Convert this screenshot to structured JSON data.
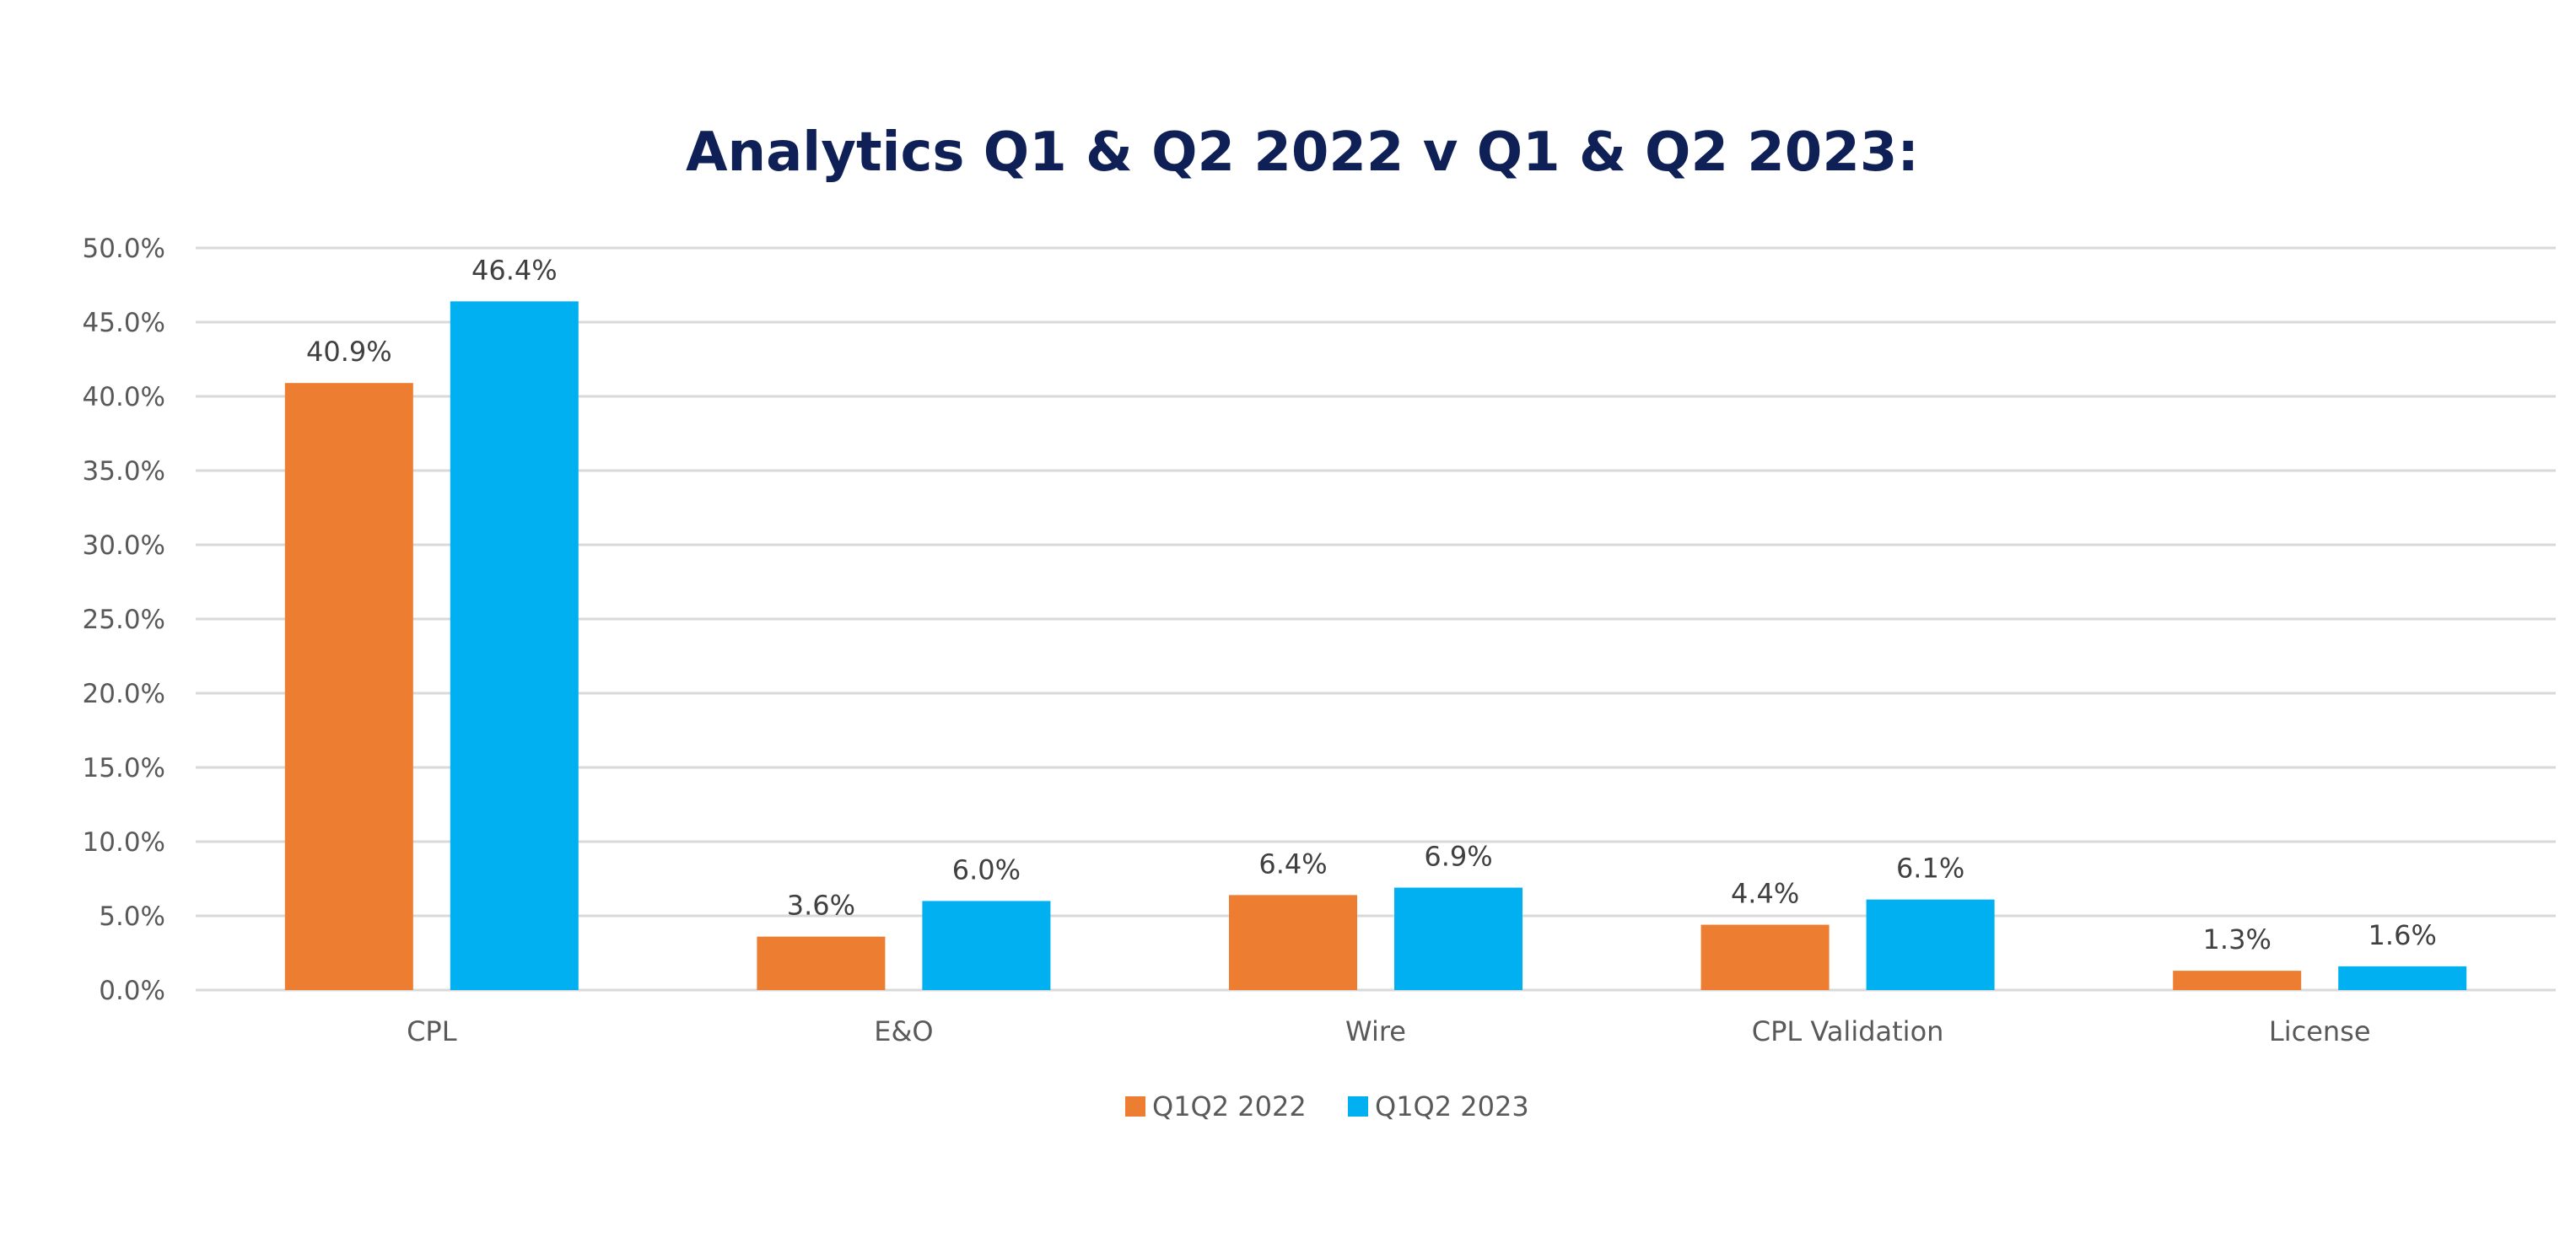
{
  "chart_data": {
    "type": "bar",
    "title": "Analytics Q1 & Q2 2022 v Q1 & Q2 2023:",
    "xlabel": "",
    "ylabel": "",
    "categories": [
      "CPL",
      "E&O",
      "Wire",
      "CPL Validation",
      "License"
    ],
    "series": [
      {
        "name": "Q1Q2 2022",
        "color": "#ed7d31",
        "values": [
          40.9,
          3.6,
          6.4,
          4.4,
          1.3
        ],
        "labels": [
          "40.9%",
          "3.6%",
          "6.4%",
          "4.4%",
          "1.3%"
        ]
      },
      {
        "name": "Q1Q2 2023",
        "color": "#00b0f0",
        "values": [
          46.4,
          6.0,
          6.9,
          6.1,
          1.6
        ],
        "labels": [
          "46.4%",
          "6.0%",
          "6.9%",
          "6.1%",
          "1.6%"
        ]
      }
    ],
    "ylim": [
      0,
      50
    ],
    "yticks": [
      0,
      5,
      10,
      15,
      20,
      25,
      30,
      35,
      40,
      45,
      50
    ],
    "ytick_labels": [
      "0.0%",
      "5.0%",
      "10.0%",
      "15.0%",
      "20.0%",
      "25.0%",
      "30.0%",
      "35.0%",
      "40.0%",
      "45.0%",
      "50.0%"
    ],
    "grid": true,
    "legend_position": "bottom"
  }
}
